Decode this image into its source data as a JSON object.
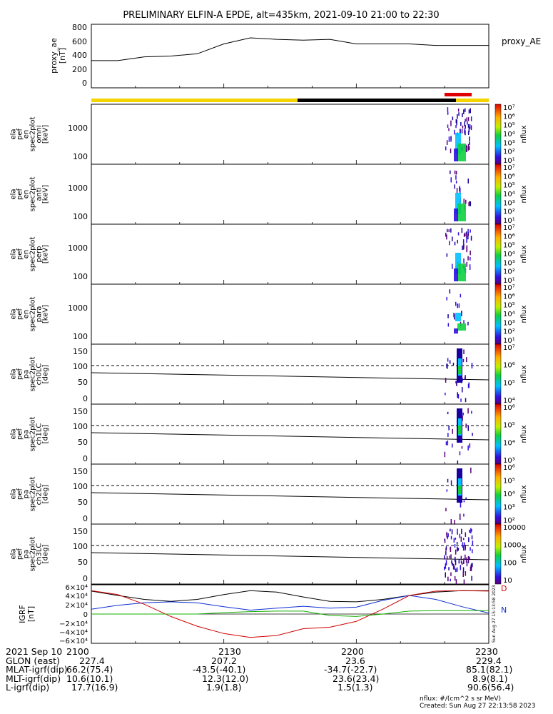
{
  "title": "PRELIMINARY ELFIN-A EPDE, alt=435km, 2021-09-10 21:00 to 22:30",
  "panels": {
    "proxy_ae": {
      "ylabel": [
        "proxy_ae",
        "[nT]"
      ],
      "legend": "proxy_AE",
      "yticks": [
        "800",
        "600",
        "400",
        "200",
        "0"
      ]
    },
    "energy_panels": [
      {
        "ylabel": [
          "ela",
          "pef",
          "en",
          "spec2plot",
          "omni",
          "[keV]"
        ]
      },
      {
        "ylabel": [
          "ela",
          "pef",
          "en",
          "spec2plot",
          "anti",
          "[keV]"
        ]
      },
      {
        "ylabel": [
          "ela",
          "pef",
          "en",
          "spec2plot",
          "perp",
          "[keV]"
        ]
      },
      {
        "ylabel": [
          "ela",
          "pef",
          "en",
          "spec2plot",
          "para",
          "[keV]"
        ]
      }
    ],
    "energy_yticks": [
      "1000",
      "100"
    ],
    "pa_panels": [
      {
        "ylabel": [
          "ela",
          "pef",
          "pa",
          "spec2plot",
          "ch0LC",
          "[deg]"
        ]
      },
      {
        "ylabel": [
          "ela",
          "pef",
          "pa",
          "spec2plot",
          "ch1LC",
          "[deg]"
        ]
      },
      {
        "ylabel": [
          "ela",
          "pef",
          "pa",
          "spec2plot",
          "ch2LC",
          "[deg]"
        ]
      },
      {
        "ylabel": [
          "ela",
          "pef",
          "pa",
          "spec2plot",
          "ch3LC",
          "[deg]"
        ]
      }
    ],
    "pa_yticks": [
      "150",
      "100",
      "50",
      "0"
    ],
    "igrf": {
      "ylabel": [
        "IGRF",
        "[nT]"
      ],
      "yticks": [
        "6×10⁴",
        "4×10⁴",
        "2×10⁴",
        "0",
        "−2×10⁴",
        "−4×10⁴",
        "−6×10⁴"
      ],
      "legend_d": "D",
      "legend_n": "N",
      "stamp": "Sun Aug 27 15:13:58 2023"
    },
    "colorbar_label": "nflux",
    "colorbar_ticks_energy": [
      "10⁷",
      "10⁶",
      "10⁵",
      "10⁴",
      "10³",
      "10²",
      "10¹"
    ],
    "colorbar_ticks_pa": [
      [
        "10⁷",
        "10⁶",
        "10⁵",
        "10⁴"
      ],
      [
        "10⁶",
        "10⁵",
        "10⁴",
        "10³"
      ],
      [
        "10⁶",
        "10⁵",
        "10⁴",
        "10³",
        "10²"
      ],
      [
        "10000",
        "1000",
        "100",
        "10"
      ]
    ]
  },
  "chart_data": [
    {
      "type": "line",
      "x": [
        "21:00",
        "21:06",
        "21:12",
        "21:18",
        "21:24",
        "21:30",
        "21:36",
        "21:42",
        "21:48",
        "21:54",
        "22:00",
        "22:06",
        "22:12",
        "22:18",
        "22:24",
        "22:30"
      ],
      "series": [
        {
          "name": "proxy_AE",
          "values": [
            340,
            340,
            390,
            400,
            430,
            560,
            640,
            620,
            610,
            620,
            560,
            560,
            560,
            540,
            540,
            540
          ]
        }
      ],
      "ylim": [
        0,
        800
      ]
    },
    {
      "type": "line",
      "x": [
        "21:00",
        "21:06",
        "21:12",
        "21:18",
        "21:24",
        "21:30",
        "21:36",
        "21:42",
        "21:48",
        "21:54",
        "22:00",
        "22:06",
        "22:12",
        "22:18",
        "22:24",
        "22:30"
      ],
      "series": [
        {
          "name": "black",
          "values": [
            47000,
            38000,
            30000,
            26000,
            30000,
            40000,
            48000,
            45000,
            35000,
            26000,
            25000,
            30000,
            38000,
            45000,
            48000,
            48000
          ]
        },
        {
          "name": "blue",
          "values": [
            10000,
            18000,
            23000,
            25000,
            23000,
            15000,
            8000,
            12000,
            16000,
            12000,
            14000,
            28000,
            38000,
            30000,
            15000,
            2000
          ]
        },
        {
          "name": "red",
          "values": [
            48000,
            40000,
            20000,
            -5000,
            -25000,
            -40000,
            -48000,
            -44000,
            -30000,
            -27000,
            -15000,
            10000,
            38000,
            47000,
            48000,
            47000
          ]
        },
        {
          "name": "green",
          "values": [
            0,
            0,
            0,
            0,
            0,
            3000,
            5000,
            6000,
            6000,
            -3000,
            -5000,
            0,
            6000,
            7000,
            7000,
            7000
          ]
        }
      ],
      "ylim": [
        -60000,
        60000
      ]
    }
  ],
  "footer": {
    "rows": [
      [
        "2021 Sep 10",
        "2100",
        "2130",
        "2200",
        "2230"
      ],
      [
        "GLON (east)",
        "227.4",
        "207.2",
        "23.6",
        "229.4"
      ],
      [
        "MLAT-igrf(dip)",
        "66.2(75.4)",
        "-43.5(-40.1)",
        "-34.7(-22.7)",
        "85.1(82.1)"
      ],
      [
        "MLT-igrf(dip)",
        "10.6(10.1)",
        "12.3(12.0)",
        "23.6(23.4)",
        "8.9(8.1)"
      ],
      [
        "L-igrf(dip)",
        "17.7(16.9)",
        "1.9(1.8)",
        "1.5(1.3)",
        "90.6(56.4)"
      ]
    ],
    "units": "nflux: #/(cm^2 s sr MeV)",
    "created": "Created: Sun Aug 27 22:13:58 2023"
  },
  "colors": {
    "sunlight": "#f5d400",
    "shadow": "#000000",
    "science_zone": "#e00000",
    "igrf_red": "#d00000",
    "igrf_blue": "#1030d0",
    "igrf_green": "#10b000"
  }
}
